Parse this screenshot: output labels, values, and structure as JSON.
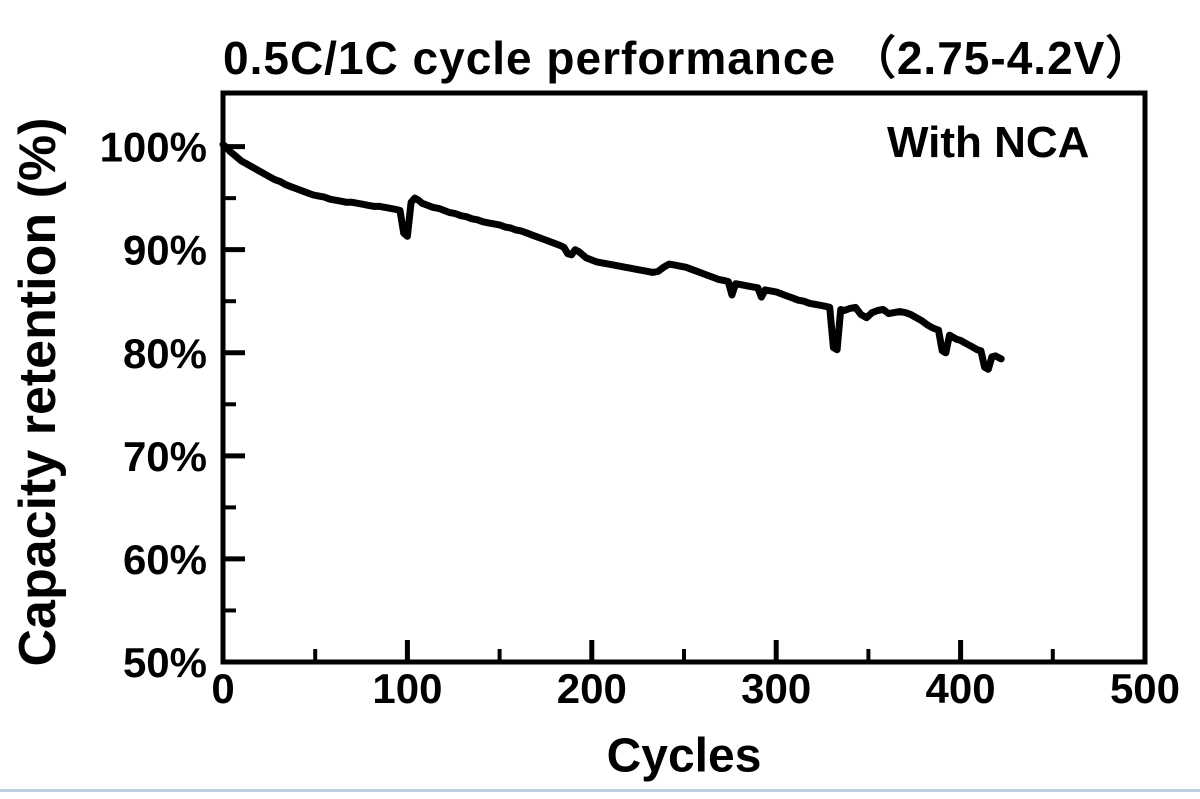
{
  "page": {
    "background_color": "#ffffff",
    "text_color": "#000000",
    "bottom_rule_color": "#bfcfe0"
  },
  "chart_data": {
    "type": "line",
    "title": "0.5C/1C cycle performance （2.75-4.2V）",
    "annotation": "With NCA",
    "xlabel": "Cycles",
    "ylabel": "Capacity retention (%)",
    "xlim": [
      0,
      500
    ],
    "ylim": [
      50,
      105.2
    ],
    "grid": false,
    "legend_position": "none",
    "axis_color": "#000000",
    "line_color": "#000000",
    "x_major_ticks": [
      0,
      100,
      200,
      300,
      400,
      500
    ],
    "x_minor_ticks": [
      50,
      150,
      250,
      350,
      450
    ],
    "x_tick_labels": [
      "0",
      "100",
      "200",
      "300",
      "400",
      "500"
    ],
    "y_major_ticks": [
      50,
      60,
      70,
      80,
      90,
      100
    ],
    "y_minor_ticks": [
      55,
      65,
      75,
      85,
      95
    ],
    "y_tick_labels": [
      "50%",
      "60%",
      "70%",
      "80%",
      "90%",
      "100%"
    ],
    "series": [
      {
        "name": "With NCA",
        "points": [
          [
            0,
            100.2
          ],
          [
            2,
            99.9
          ],
          [
            4,
            99.5
          ],
          [
            6,
            99.2
          ],
          [
            8,
            98.9
          ],
          [
            10,
            98.6
          ],
          [
            13,
            98.3
          ],
          [
            16,
            98.0
          ],
          [
            19,
            97.7
          ],
          [
            22,
            97.4
          ],
          [
            25,
            97.1
          ],
          [
            28,
            96.8
          ],
          [
            31,
            96.6
          ],
          [
            34,
            96.3
          ],
          [
            37,
            96.1
          ],
          [
            40,
            95.9
          ],
          [
            43,
            95.7
          ],
          [
            46,
            95.5
          ],
          [
            49,
            95.3
          ],
          [
            52,
            95.2
          ],
          [
            55,
            95.1
          ],
          [
            58,
            94.9
          ],
          [
            61,
            94.8
          ],
          [
            64,
            94.7
          ],
          [
            67,
            94.6
          ],
          [
            70,
            94.6
          ],
          [
            73,
            94.5
          ],
          [
            76,
            94.4
          ],
          [
            79,
            94.3
          ],
          [
            82,
            94.2
          ],
          [
            85,
            94.2
          ],
          [
            88,
            94.1
          ],
          [
            91,
            94.0
          ],
          [
            94,
            93.9
          ],
          [
            96,
            93.8
          ],
          [
            98,
            91.6
          ],
          [
            100,
            91.3
          ],
          [
            102,
            94.6
          ],
          [
            104,
            95.0
          ],
          [
            106,
            94.8
          ],
          [
            108,
            94.5
          ],
          [
            111,
            94.3
          ],
          [
            114,
            94.1
          ],
          [
            117,
            94.0
          ],
          [
            120,
            93.8
          ],
          [
            123,
            93.6
          ],
          [
            126,
            93.5
          ],
          [
            129,
            93.3
          ],
          [
            132,
            93.2
          ],
          [
            135,
            93.0
          ],
          [
            138,
            92.9
          ],
          [
            141,
            92.7
          ],
          [
            144,
            92.6
          ],
          [
            147,
            92.5
          ],
          [
            150,
            92.4
          ],
          [
            153,
            92.2
          ],
          [
            156,
            92.1
          ],
          [
            159,
            91.9
          ],
          [
            162,
            91.8
          ],
          [
            165,
            91.6
          ],
          [
            168,
            91.4
          ],
          [
            171,
            91.2
          ],
          [
            174,
            91.0
          ],
          [
            177,
            90.8
          ],
          [
            180,
            90.6
          ],
          [
            183,
            90.4
          ],
          [
            185,
            90.2
          ],
          [
            187,
            89.6
          ],
          [
            189,
            89.5
          ],
          [
            191,
            90.0
          ],
          [
            193,
            89.8
          ],
          [
            195,
            89.5
          ],
          [
            197,
            89.2
          ],
          [
            200,
            89.0
          ],
          [
            203,
            88.8
          ],
          [
            206,
            88.7
          ],
          [
            209,
            88.6
          ],
          [
            212,
            88.5
          ],
          [
            215,
            88.4
          ],
          [
            218,
            88.3
          ],
          [
            221,
            88.2
          ],
          [
            224,
            88.1
          ],
          [
            227,
            88.0
          ],
          [
            230,
            87.9
          ],
          [
            233,
            87.8
          ],
          [
            236,
            87.9
          ],
          [
            239,
            88.3
          ],
          [
            242,
            88.6
          ],
          [
            245,
            88.5
          ],
          [
            248,
            88.4
          ],
          [
            251,
            88.3
          ],
          [
            254,
            88.1
          ],
          [
            257,
            87.9
          ],
          [
            260,
            87.7
          ],
          [
            263,
            87.5
          ],
          [
            266,
            87.3
          ],
          [
            269,
            87.1
          ],
          [
            272,
            87.0
          ],
          [
            274,
            86.9
          ],
          [
            276,
            85.6
          ],
          [
            278,
            86.7
          ],
          [
            281,
            86.6
          ],
          [
            284,
            86.5
          ],
          [
            287,
            86.4
          ],
          [
            290,
            86.3
          ],
          [
            292,
            85.4
          ],
          [
            294,
            86.1
          ],
          [
            297,
            86.0
          ],
          [
            300,
            85.9
          ],
          [
            303,
            85.7
          ],
          [
            306,
            85.5
          ],
          [
            309,
            85.3
          ],
          [
            312,
            85.1
          ],
          [
            315,
            85.0
          ],
          [
            318,
            84.8
          ],
          [
            321,
            84.7
          ],
          [
            324,
            84.6
          ],
          [
            327,
            84.5
          ],
          [
            329,
            84.4
          ],
          [
            331,
            80.5
          ],
          [
            333,
            80.3
          ],
          [
            335,
            84.2
          ],
          [
            337,
            84.1
          ],
          [
            340,
            84.3
          ],
          [
            343,
            84.4
          ],
          [
            346,
            83.7
          ],
          [
            349,
            83.4
          ],
          [
            352,
            83.9
          ],
          [
            355,
            84.1
          ],
          [
            358,
            84.2
          ],
          [
            361,
            83.8
          ],
          [
            364,
            83.9
          ],
          [
            367,
            84.0
          ],
          [
            370,
            83.9
          ],
          [
            373,
            83.7
          ],
          [
            376,
            83.4
          ],
          [
            379,
            83.1
          ],
          [
            382,
            82.7
          ],
          [
            385,
            82.4
          ],
          [
            388,
            82.2
          ],
          [
            390,
            80.2
          ],
          [
            392,
            80.0
          ],
          [
            394,
            81.7
          ],
          [
            396,
            81.5
          ],
          [
            398,
            81.3
          ],
          [
            400,
            81.2
          ],
          [
            403,
            80.9
          ],
          [
            406,
            80.6
          ],
          [
            409,
            80.3
          ],
          [
            411,
            80.2
          ],
          [
            413,
            78.6
          ],
          [
            415,
            78.4
          ],
          [
            417,
            79.6
          ],
          [
            419,
            79.7
          ],
          [
            421,
            79.5
          ],
          [
            422,
            79.4
          ]
        ]
      }
    ]
  }
}
